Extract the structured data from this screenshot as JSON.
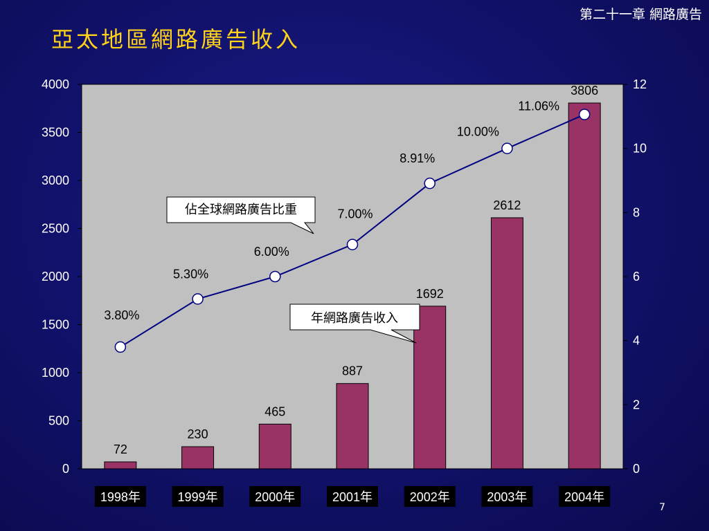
{
  "slide": {
    "title": "亞太地區網路廣告收入",
    "chapter": "第二十一章 網路廣告",
    "page_number": "7"
  },
  "colors": {
    "background": "#12126e",
    "title": "#ffd21a",
    "plot_area": "#c0c0c0",
    "bar": "#993366",
    "line": "#000080",
    "marker_fill": "#ffffff"
  },
  "chart_data": {
    "type": "bar",
    "categories": [
      "1998年",
      "1999年",
      "2000年",
      "2001年",
      "2002年",
      "2003年",
      "2004年"
    ],
    "bar_series": {
      "name": "年網路廣告收入",
      "values": [
        72,
        230,
        465,
        887,
        1692,
        2612,
        3806
      ],
      "value_labels": [
        "72",
        "230",
        "465",
        "887",
        "1692",
        "2612",
        "3806"
      ]
    },
    "line_series": {
      "name": "佔全球網路廣告比重",
      "values": [
        3.8,
        5.3,
        6.0,
        7.0,
        8.91,
        10.0,
        11.06
      ],
      "value_labels": [
        "3.80%",
        "5.30%",
        "6.00%",
        "7.00%",
        "8.91%",
        "10.00%",
        "11.06%"
      ]
    },
    "y_left": {
      "ylim": [
        0,
        4000
      ],
      "ticks": [
        "0",
        "500",
        "1000",
        "1500",
        "2000",
        "2500",
        "3000",
        "3500",
        "4000"
      ]
    },
    "y_right": {
      "ylim": [
        0,
        12
      ],
      "ticks": [
        "0",
        "2",
        "4",
        "6",
        "8",
        "10",
        "12"
      ]
    },
    "grid": false
  }
}
